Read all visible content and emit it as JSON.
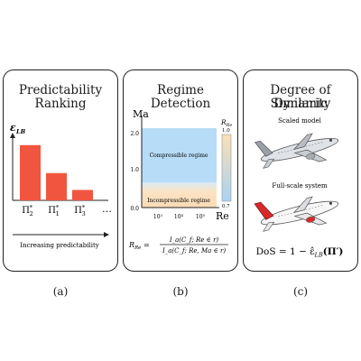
{
  "panel_a": {
    "title_line1": "Predictability",
    "title_line2": "Ranking",
    "ylabel": "ε",
    "ylabel_sub": "LB",
    "bars": [
      {
        "label": "Π",
        "sub": "2",
        "sup": "*",
        "value": 0.85
      },
      {
        "label": "Π",
        "sub": "1",
        "sup": "*",
        "value": 0.42
      },
      {
        "label": "Π",
        "sub": "3",
        "sup": "*",
        "value": 0.16
      }
    ],
    "ellipsis": "…",
    "arrow_label": "Increasing predictability",
    "caption": "(a)"
  },
  "panel_b": {
    "title_line1": "Regime",
    "title_line2": "Detection",
    "y_axis_label": "Ma",
    "x_axis_label": "Re",
    "y_ticks": [
      "2.0",
      "1.0",
      "0.0"
    ],
    "x_ticks": [
      {
        "base": "10",
        "exp": "3"
      },
      {
        "base": "10",
        "exp": "4"
      },
      {
        "base": "10",
        "exp": "5"
      }
    ],
    "region_upper": "Compressible regime",
    "region_lower": "Incompressible regime",
    "colorbar_label": "R",
    "colorbar_label_sub": "Re",
    "colorbar_max": "1.0",
    "colorbar_min": "0.7",
    "formula_lhs": "R",
    "formula_lhs_sub": "Re",
    "formula_num": "I_a(C_f; Re ∈ r)",
    "formula_den": "I_a(C_f; Re, Ma ∈ r)",
    "caption": "(b)"
  },
  "panel_c": {
    "title_line1": "Degree of Dynamic",
    "title_line2": "Similarity",
    "label_top": "Scaled model",
    "label_bottom": "Full-scale system",
    "formula": "DoS = 1 − ε̂",
    "formula_sub": "LB",
    "formula_arg": "(Π′)",
    "caption": "(c)"
  },
  "colors": {
    "bar": "#f2553f",
    "compressible": "#b7dcf7",
    "incompressible": "#fbe3c4",
    "cb_top": "#fbe0b8",
    "cb_bottom": "#a9d2f2",
    "plane_tail_top": "#9aa0a8",
    "plane_tail_bottom": "#d62a2a"
  }
}
